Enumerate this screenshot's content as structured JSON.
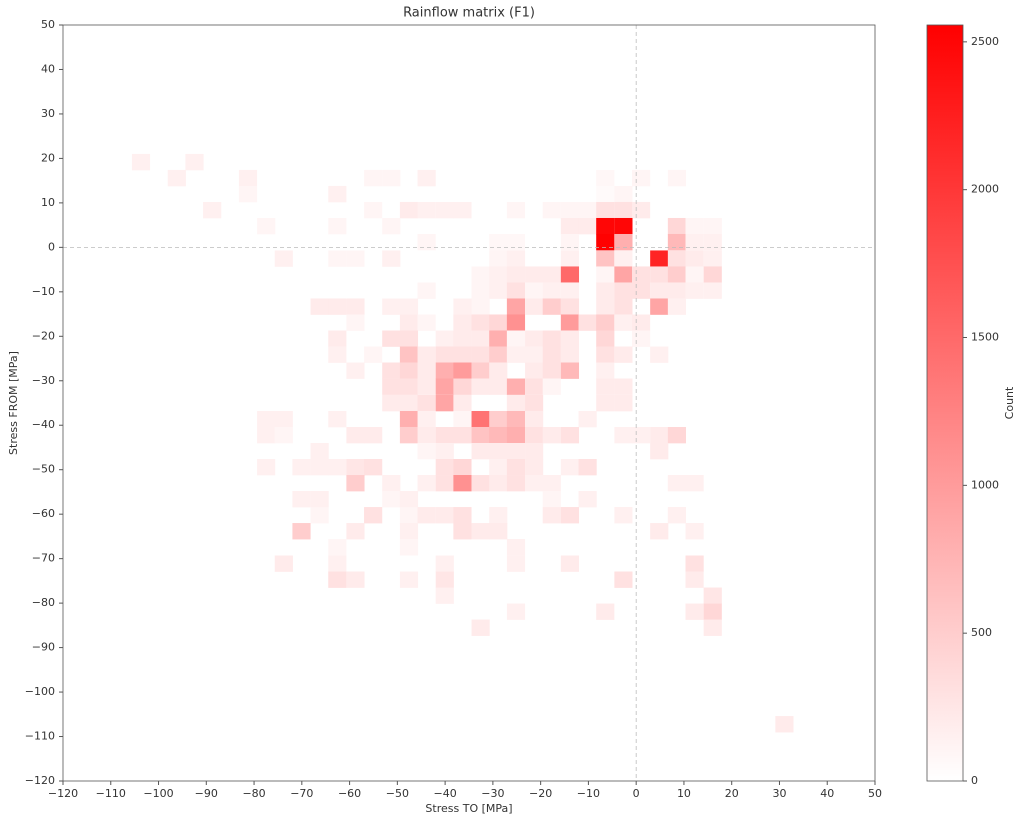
{
  "chart_data": {
    "type": "heatmap",
    "title": "Rainflow matrix (F1)",
    "xlabel": "Stress TO [MPa]",
    "ylabel": "Stress FROM [MPa]",
    "colorbar_label": "Count",
    "xlim": [
      -120,
      50
    ],
    "ylim": [
      -120,
      50
    ],
    "xticks": [
      {
        "value": -120,
        "label": "−120"
      },
      {
        "value": -110,
        "label": "−110"
      },
      {
        "value": -100,
        "label": "−100"
      },
      {
        "value": -90,
        "label": "−90"
      },
      {
        "value": -80,
        "label": "−80"
      },
      {
        "value": -70,
        "label": "−70"
      },
      {
        "value": -60,
        "label": "−60"
      },
      {
        "value": -50,
        "label": "−50"
      },
      {
        "value": -40,
        "label": "−40"
      },
      {
        "value": -30,
        "label": "−30"
      },
      {
        "value": -20,
        "label": "−20"
      },
      {
        "value": -10,
        "label": "−10"
      },
      0,
      10,
      20,
      30,
      40,
      50
    ],
    "yticks": [
      {
        "value": -120,
        "label": "−120"
      },
      {
        "value": -110,
        "label": "−110"
      },
      {
        "value": -100,
        "label": "−100"
      },
      {
        "value": -90,
        "label": "−90"
      },
      {
        "value": -80,
        "label": "−80"
      },
      {
        "value": -70,
        "label": "−70"
      },
      {
        "value": -60,
        "label": "−60"
      },
      {
        "value": -50,
        "label": "−50"
      },
      {
        "value": -40,
        "label": "−40"
      },
      {
        "value": -30,
        "label": "−30"
      },
      {
        "value": -20,
        "label": "−20"
      },
      {
        "value": -10,
        "label": "−10"
      },
      0,
      10,
      20,
      30,
      40,
      50
    ],
    "clim": [
      0,
      2557
    ],
    "cticks": [
      0,
      500,
      1000,
      1500,
      2000,
      2500
    ],
    "cmap": [
      "#ffffff",
      "#ff0000"
    ],
    "zero_lines": true,
    "cell_width": 3.74,
    "cell_height": 3.61,
    "rows": [
      {
        "y": 19.2,
        "x": [
          -103.7,
          -92.5
        ],
        "values": [
          150,
          150
        ]
      },
      {
        "y": 15.6,
        "x": [
          -96.2,
          -81.3,
          -55.1,
          -51.3,
          -43.9,
          -6.5,
          1.0,
          8.5
        ],
        "values": [
          150,
          150,
          100,
          100,
          150,
          80,
          100,
          100
        ]
      },
      {
        "y": 12.0,
        "x": [
          -81.3,
          -62.6,
          -6.5,
          -2.7
        ],
        "values": [
          100,
          150,
          50,
          100
        ]
      },
      {
        "y": 8.4,
        "x": [
          -88.8,
          -55.1,
          -47.6,
          -43.9,
          -40.1,
          -36.4,
          -25.2,
          -17.7,
          -13.9,
          -10.2,
          -6.5,
          -2.7,
          1.0
        ],
        "values": [
          150,
          100,
          200,
          150,
          150,
          150,
          100,
          100,
          100,
          100,
          300,
          300,
          200
        ]
      },
      {
        "y": 4.8,
        "x": [
          -77.5,
          -62.6,
          -51.3,
          -13.9,
          -10.2,
          -6.5,
          -2.7,
          8.5,
          12.2,
          16.0
        ],
        "values": [
          100,
          100,
          100,
          200,
          200,
          2500,
          2500,
          400,
          100,
          100
        ]
      },
      {
        "y": 1.2,
        "x": [
          -43.9,
          -28.9,
          -25.2,
          -13.9,
          -6.5,
          -2.7,
          8.5,
          12.2,
          16.0
        ],
        "values": [
          100,
          80,
          80,
          100,
          2550,
          800,
          700,
          150,
          150
        ]
      },
      {
        "y": -2.5,
        "x": [
          -73.8,
          -62.6,
          -58.8,
          -51.3,
          -28.9,
          -25.2,
          -13.9,
          -6.5,
          -2.7,
          4.8,
          8.5,
          12.2,
          16.0
        ],
        "values": [
          150,
          100,
          100,
          150,
          100,
          150,
          150,
          600,
          150,
          2200,
          300,
          200,
          150
        ]
      },
      {
        "y": -6.1,
        "x": [
          -32.6,
          -28.9,
          -25.2,
          -21.4,
          -17.7,
          -13.9,
          -6.5,
          -2.7,
          1.0,
          4.8,
          8.5,
          12.2,
          16.0
        ],
        "values": [
          100,
          150,
          200,
          200,
          200,
          1500,
          100,
          900,
          300,
          300,
          500,
          100,
          400
        ]
      },
      {
        "y": -9.7,
        "x": [
          -43.9,
          -32.6,
          -28.9,
          -25.2,
          -21.4,
          -17.7,
          -13.9,
          -6.5,
          -2.7,
          1.0,
          4.8,
          8.5,
          12.2,
          16.0
        ],
        "values": [
          100,
          100,
          150,
          300,
          100,
          150,
          150,
          200,
          300,
          300,
          200,
          200,
          150,
          150
        ]
      },
      {
        "y": -13.3,
        "x": [
          -66.3,
          -62.6,
          -58.8,
          -51.3,
          -47.6,
          -36.4,
          -32.6,
          -25.2,
          -21.4,
          -17.7,
          -13.9,
          -6.5,
          -2.7,
          4.8,
          8.5
        ],
        "values": [
          200,
          200,
          200,
          150,
          150,
          150,
          100,
          900,
          200,
          500,
          300,
          200,
          300,
          900,
          150
        ]
      },
      {
        "y": -16.9,
        "x": [
          -58.8,
          -47.6,
          -43.9,
          -36.4,
          -32.6,
          -28.9,
          -25.2,
          -13.9,
          -10.2,
          -6.5,
          -2.7,
          1.0
        ],
        "values": [
          100,
          200,
          100,
          200,
          300,
          400,
          1100,
          1000,
          300,
          500,
          150,
          200
        ]
      },
      {
        "y": -20.5,
        "x": [
          -62.6,
          -51.3,
          -47.6,
          -40.1,
          -36.4,
          -32.6,
          -28.9,
          -25.2,
          -21.4,
          -17.7,
          -13.9,
          -6.5,
          1.0
        ],
        "values": [
          200,
          300,
          300,
          150,
          200,
          200,
          800,
          100,
          200,
          300,
          200,
          400,
          100
        ]
      },
      {
        "y": -24.1,
        "x": [
          -62.6,
          -55.1,
          -47.6,
          -43.9,
          -40.1,
          -36.4,
          -32.6,
          -28.9,
          -25.2,
          -21.4,
          -17.7,
          -13.9,
          -6.5,
          -2.7,
          4.8
        ],
        "values": [
          150,
          100,
          600,
          200,
          300,
          300,
          300,
          500,
          150,
          150,
          300,
          200,
          300,
          200,
          150
        ]
      },
      {
        "y": -27.7,
        "x": [
          -58.8,
          -51.3,
          -47.6,
          -43.9,
          -40.1,
          -36.4,
          -32.6,
          -28.9,
          -21.4,
          -17.7,
          -13.9,
          -6.5
        ],
        "values": [
          150,
          300,
          400,
          200,
          800,
          1000,
          500,
          200,
          200,
          300,
          700,
          150
        ]
      },
      {
        "y": -31.3,
        "x": [
          -51.3,
          -47.6,
          -43.9,
          -40.1,
          -36.4,
          -32.6,
          -28.9,
          -25.2,
          -21.4,
          -17.7,
          -6.5,
          -2.7
        ],
        "values": [
          300,
          300,
          200,
          900,
          400,
          200,
          200,
          800,
          300,
          100,
          200,
          200
        ]
      },
      {
        "y": -35.0,
        "x": [
          -51.3,
          -47.6,
          -43.9,
          -40.1,
          -36.4,
          -25.2,
          -21.4,
          -6.5,
          -2.7
        ],
        "values": [
          200,
          200,
          300,
          900,
          200,
          200,
          300,
          200,
          200
        ]
      },
      {
        "y": -38.6,
        "x": [
          -77.5,
          -73.8,
          -62.6,
          -47.6,
          -43.9,
          -36.4,
          -32.6,
          -28.9,
          -25.2,
          -21.4,
          -10.2
        ],
        "values": [
          150,
          150,
          150,
          800,
          150,
          100,
          1400,
          500,
          700,
          200,
          150
        ]
      },
      {
        "y": -42.2,
        "x": [
          -77.5,
          -73.8,
          -58.8,
          -55.1,
          -47.6,
          -43.9,
          -40.1,
          -36.4,
          -32.6,
          -28.9,
          -25.2,
          -21.4,
          -17.7,
          -13.9,
          -2.7,
          1.0,
          4.8,
          8.5
        ],
        "values": [
          150,
          100,
          200,
          200,
          500,
          200,
          300,
          300,
          600,
          700,
          800,
          300,
          200,
          300,
          150,
          150,
          200,
          400
        ]
      },
      {
        "y": -45.8,
        "x": [
          -66.3,
          -43.9,
          -40.1,
          -32.6,
          -28.9,
          -25.2,
          -21.4,
          4.8
        ],
        "values": [
          150,
          100,
          150,
          200,
          200,
          200,
          200,
          200
        ]
      },
      {
        "y": -49.4,
        "x": [
          -77.5,
          -70.1,
          -66.3,
          -62.6,
          -58.8,
          -55.1,
          -40.1,
          -36.4,
          -28.9,
          -25.2,
          -21.4,
          -13.9,
          -10.2
        ],
        "values": [
          150,
          150,
          150,
          150,
          250,
          300,
          300,
          400,
          150,
          300,
          200,
          150,
          300
        ]
      },
      {
        "y": -53.0,
        "x": [
          -58.8,
          -51.3,
          -43.9,
          -40.1,
          -36.4,
          -32.6,
          -28.9,
          -25.2,
          -21.4,
          -17.7,
          8.5,
          12.2
        ],
        "values": [
          500,
          150,
          150,
          300,
          1100,
          300,
          200,
          300,
          150,
          150,
          150,
          150
        ]
      },
      {
        "y": -56.6,
        "x": [
          -70.1,
          -66.3,
          -51.3,
          -47.6,
          -17.7,
          -10.2
        ],
        "values": [
          150,
          150,
          100,
          150,
          100,
          150
        ]
      },
      {
        "y": -60.2,
        "x": [
          -66.3,
          -55.1,
          -47.6,
          -43.9,
          -40.1,
          -36.4,
          -28.9,
          -17.7,
          -13.9,
          -2.7,
          8.5
        ],
        "values": [
          100,
          300,
          100,
          200,
          200,
          300,
          150,
          200,
          300,
          150,
          150
        ]
      },
      {
        "y": -63.8,
        "x": [
          -70.1,
          -58.8,
          -47.6,
          -36.4,
          -32.6,
          -28.9,
          4.8,
          12.2
        ],
        "values": [
          500,
          200,
          150,
          300,
          200,
          200,
          200,
          150
        ]
      },
      {
        "y": -67.4,
        "x": [
          -62.6,
          -47.6,
          -25.2
        ],
        "values": [
          100,
          100,
          150
        ]
      },
      {
        "y": -71.1,
        "x": [
          -73.8,
          -62.6,
          -40.1,
          -25.2,
          -13.9,
          12.2
        ],
        "values": [
          200,
          150,
          150,
          150,
          200,
          300
        ]
      },
      {
        "y": -74.7,
        "x": [
          -62.6,
          -58.8,
          -47.6,
          -40.1,
          -2.7,
          12.2
        ],
        "values": [
          300,
          200,
          150,
          250,
          300,
          200
        ]
      },
      {
        "y": -78.3,
        "x": [
          -40.1,
          16.0
        ],
        "values": [
          150,
          250
        ]
      },
      {
        "y": -81.9,
        "x": [
          -25.2,
          -6.5,
          12.2,
          16.0
        ],
        "values": [
          150,
          200,
          200,
          400
        ]
      },
      {
        "y": -85.5,
        "x": [
          -32.6,
          16.0
        ],
        "values": [
          200,
          200
        ]
      },
      {
        "y": -107.2,
        "x": [
          31.0
        ],
        "values": [
          200
        ]
      }
    ]
  }
}
